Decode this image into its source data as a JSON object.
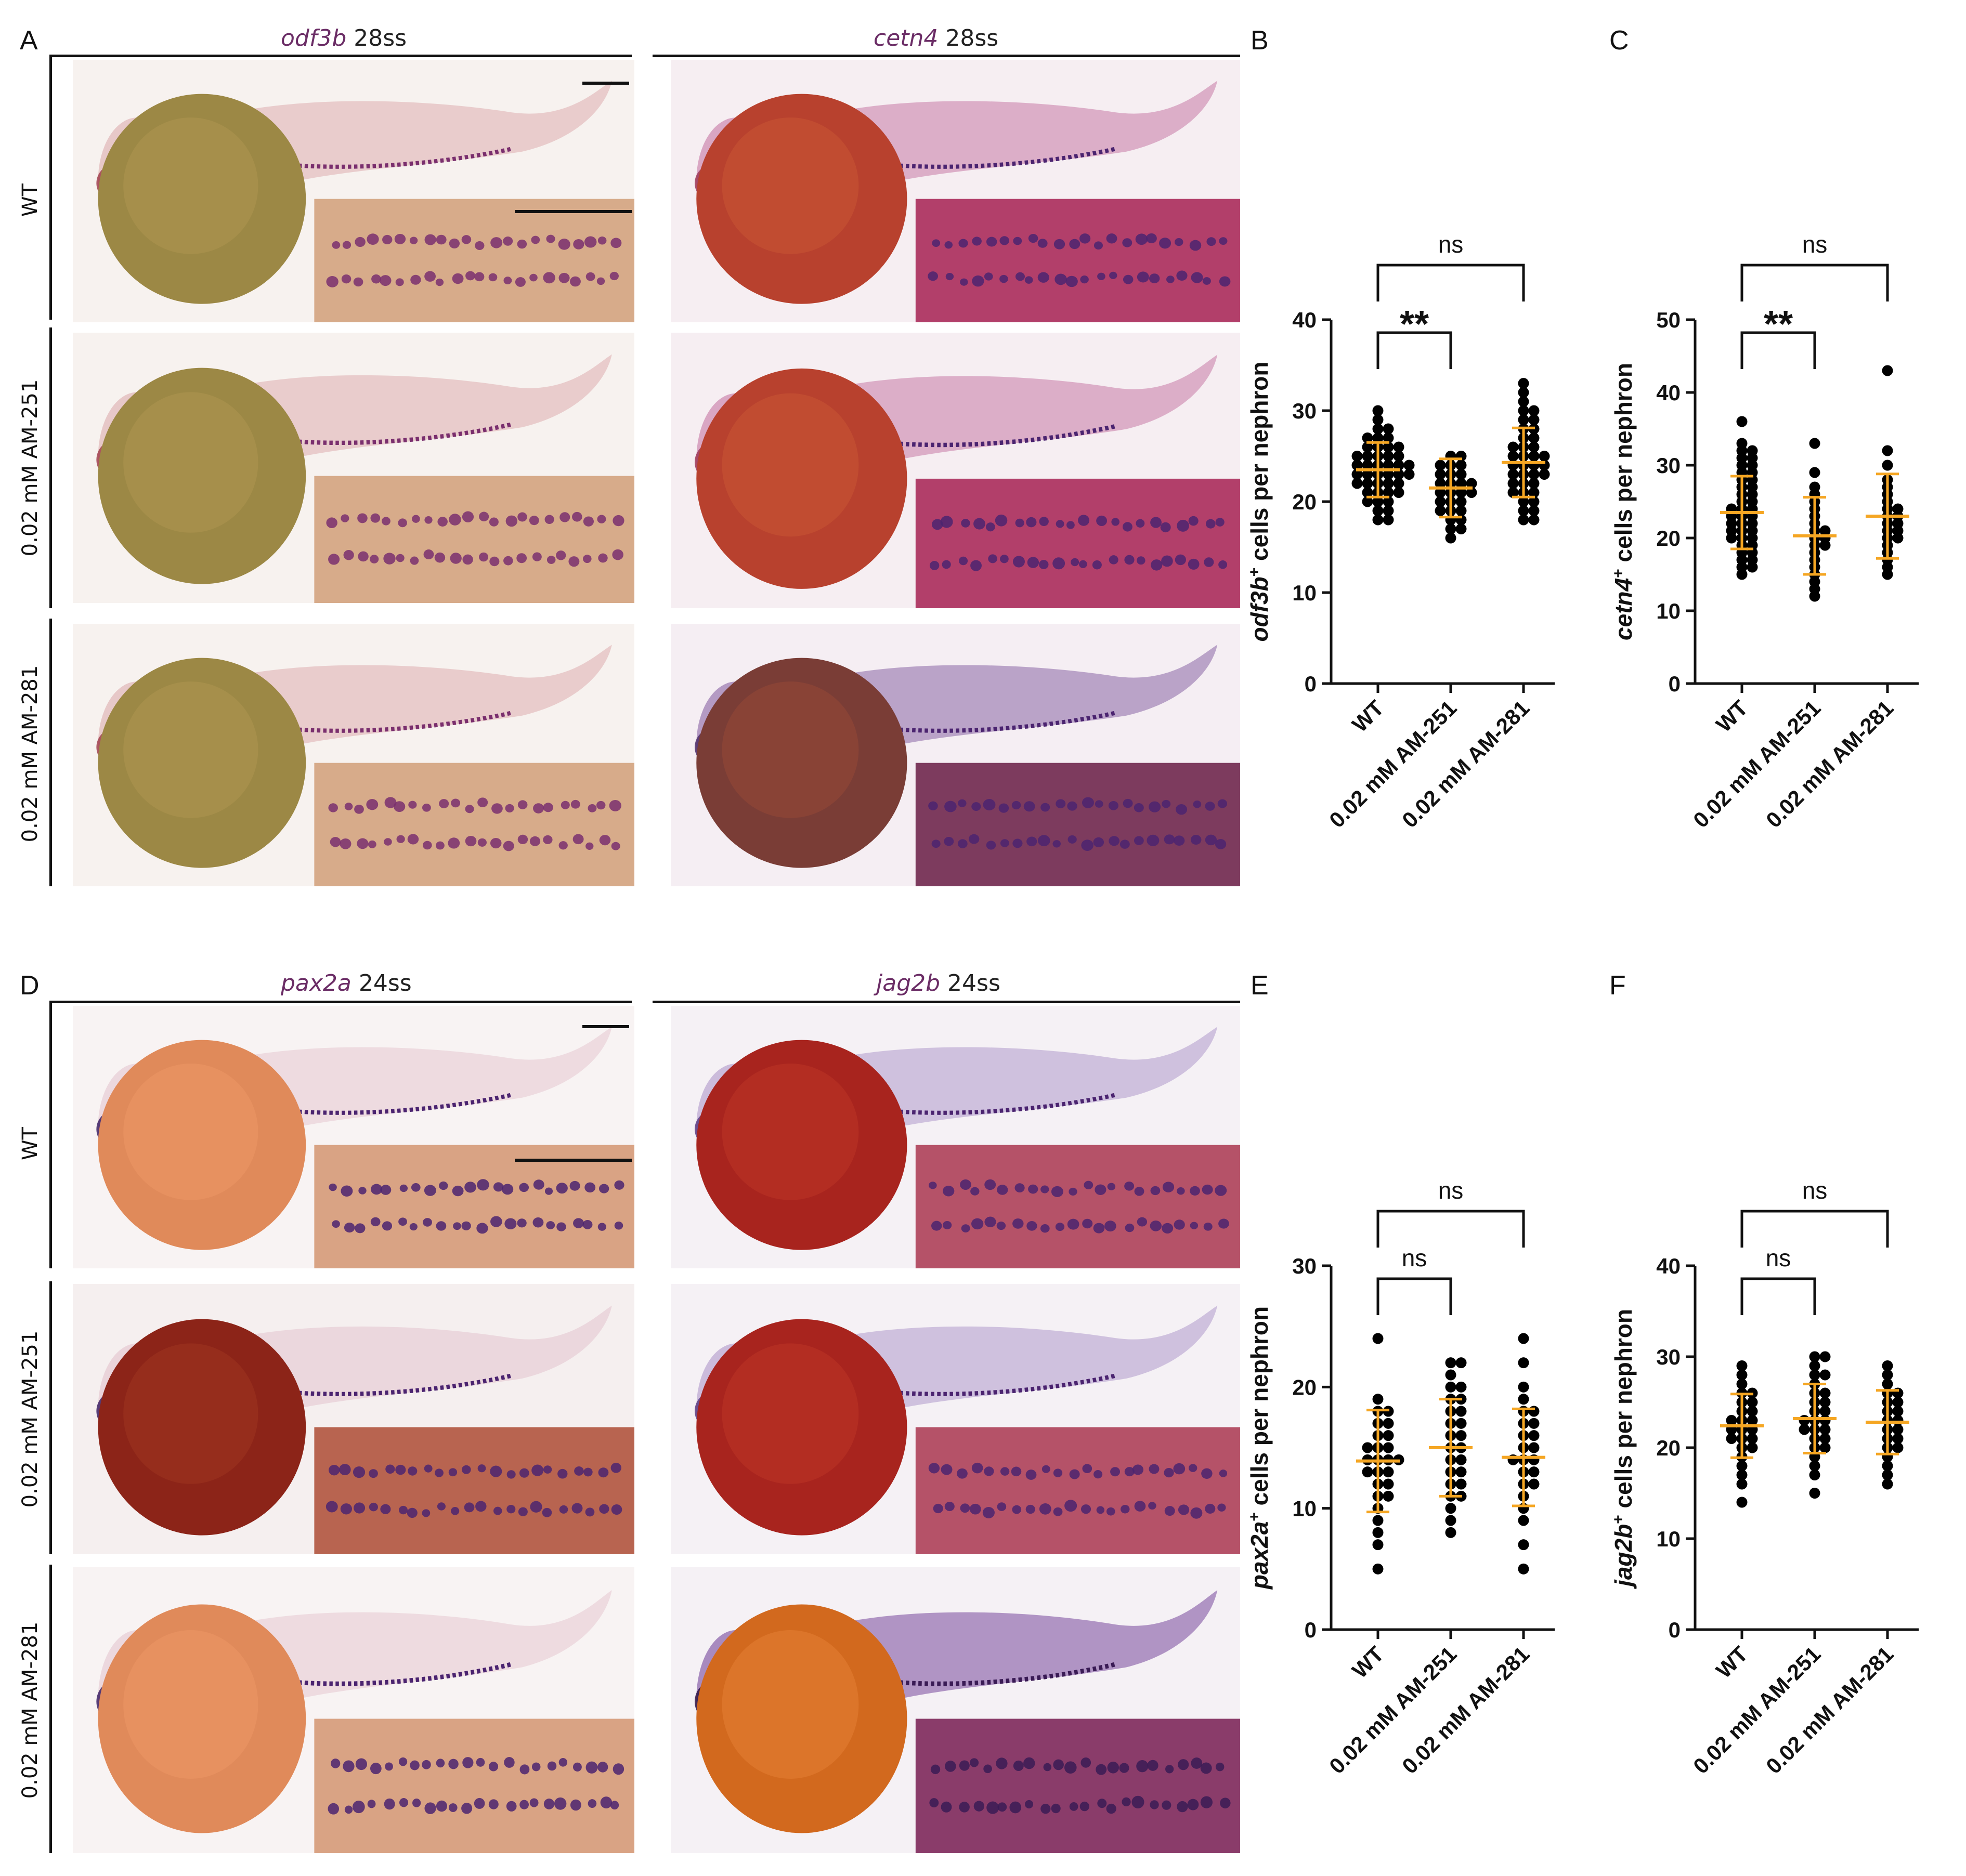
{
  "panel_labels": {
    "A": "A",
    "B": "B",
    "C": "C",
    "D": "D",
    "E": "E",
    "F": "F"
  },
  "panel_A": {
    "left_title": {
      "gene": "odf3b",
      "stage": " 28ss"
    },
    "right_title": {
      "gene": "cetn4",
      "stage": " 28ss"
    },
    "rows": [
      "WT",
      "0.02 mM AM-251",
      "0.02 mM AM-281"
    ]
  },
  "panel_D": {
    "left_title": {
      "gene": "pax2a",
      "stage": " 24ss"
    },
    "right_title": {
      "gene": "jag2b",
      "stage": " 24ss"
    },
    "rows": [
      "WT",
      "0.02 mM AM-251",
      "0.02 mM AM-281"
    ]
  },
  "colors": {
    "points": "#000000",
    "mean_sd": "#f5a623",
    "yolk_odf3b": "#9c8845",
    "yolk_cetn4": "#b8412e",
    "yolk_pax2a": "#e08a5a",
    "yolk_jag2b": "#a8241e",
    "stain": "#4b2470"
  },
  "chart_data": [
    {
      "panel": "B",
      "type": "scatter",
      "ylabel_gene": "odf3b",
      "ylabel_sup": "+",
      "ylabel_rest": " cells per nephron",
      "categories": [
        "WT",
        "0.02 mM AM-251",
        "0.02 mM AM-281"
      ],
      "ylim": [
        0,
        40
      ],
      "yticks": [
        0,
        10,
        20,
        30,
        40
      ],
      "mean": [
        23.5,
        21.5,
        24.3
      ],
      "sd": [
        3.0,
        3.2,
        3.8
      ],
      "points": [
        [
          18,
          18,
          19,
          19,
          20,
          20,
          20,
          21,
          21,
          21,
          21,
          22,
          22,
          22,
          22,
          22,
          23,
          23,
          23,
          23,
          23,
          23,
          24,
          24,
          24,
          24,
          24,
          24,
          25,
          25,
          25,
          25,
          25,
          26,
          26,
          26,
          26,
          27,
          27,
          27,
          28,
          28,
          29,
          30
        ],
        [
          16,
          17,
          17,
          18,
          18,
          19,
          19,
          19,
          20,
          20,
          20,
          21,
          21,
          21,
          21,
          22,
          22,
          22,
          22,
          23,
          23,
          23,
          24,
          24,
          24,
          25,
          25
        ],
        [
          18,
          18,
          19,
          19,
          20,
          20,
          21,
          21,
          21,
          22,
          22,
          22,
          23,
          23,
          23,
          23,
          24,
          24,
          24,
          24,
          25,
          25,
          25,
          25,
          26,
          26,
          26,
          27,
          27,
          28,
          28,
          29,
          29,
          30,
          30,
          31,
          32,
          33
        ]
      ],
      "comparisons": [
        {
          "from": 0,
          "to": 1,
          "label": "**",
          "level": 1
        },
        {
          "from": 0,
          "to": 2,
          "label": "ns",
          "level": 2
        }
      ]
    },
    {
      "panel": "C",
      "type": "scatter",
      "ylabel_gene": "cetn4",
      "ylabel_sup": "+",
      "ylabel_rest": " cells per nephron",
      "categories": [
        "WT",
        "0.02 mM AM-251",
        "0.02 mM AM-281"
      ],
      "ylim": [
        0,
        50
      ],
      "yticks": [
        0,
        10,
        20,
        30,
        40,
        50
      ],
      "mean": [
        23.5,
        20.3,
        23.0
      ],
      "sd": [
        5.0,
        5.3,
        5.8
      ],
      "points": [
        [
          15,
          16,
          16,
          17,
          17,
          18,
          18,
          19,
          19,
          20,
          20,
          20,
          21,
          21,
          21,
          22,
          22,
          22,
          23,
          23,
          23,
          24,
          24,
          24,
          25,
          25,
          26,
          26,
          27,
          27,
          28,
          28,
          29,
          29,
          30,
          30,
          31,
          31,
          32,
          32,
          33,
          36
        ],
        [
          12,
          13,
          14,
          15,
          16,
          17,
          18,
          19,
          19,
          20,
          20,
          21,
          21,
          22,
          23,
          24,
          25,
          26,
          27,
          29,
          33
        ],
        [
          15,
          16,
          17,
          18,
          19,
          20,
          20,
          21,
          21,
          22,
          22,
          23,
          23,
          24,
          24,
          25,
          26,
          27,
          28,
          30,
          32,
          43
        ]
      ],
      "comparisons": [
        {
          "from": 0,
          "to": 1,
          "label": "**",
          "level": 1
        },
        {
          "from": 0,
          "to": 2,
          "label": "ns",
          "level": 2
        }
      ]
    },
    {
      "panel": "E",
      "type": "scatter",
      "ylabel_gene": "pax2a",
      "ylabel_sup": "+",
      "ylabel_rest": " cells per nephron",
      "categories": [
        "WT",
        "0.02 mM AM-251",
        "0.02 mM AM-281"
      ],
      "ylim": [
        0,
        30
      ],
      "yticks": [
        0,
        10,
        20,
        30
      ],
      "mean": [
        13.9,
        15.0,
        14.2
      ],
      "sd": [
        4.2,
        4.0,
        4.0
      ],
      "points": [
        [
          5,
          7,
          8,
          9,
          10,
          11,
          11,
          12,
          12,
          13,
          13,
          13,
          14,
          14,
          14,
          14,
          15,
          15,
          15,
          16,
          16,
          17,
          17,
          18,
          18,
          19,
          24
        ],
        [
          8,
          9,
          10,
          11,
          11,
          12,
          12,
          13,
          13,
          14,
          14,
          15,
          15,
          16,
          16,
          17,
          17,
          18,
          18,
          19,
          19,
          20,
          20,
          21,
          22,
          22
        ],
        [
          5,
          7,
          9,
          10,
          11,
          12,
          12,
          13,
          13,
          14,
          14,
          14,
          15,
          15,
          16,
          16,
          17,
          17,
          18,
          18,
          19,
          20,
          22,
          24
        ]
      ],
      "comparisons": [
        {
          "from": 0,
          "to": 1,
          "label": "ns",
          "level": 1
        },
        {
          "from": 0,
          "to": 2,
          "label": "ns",
          "level": 2
        }
      ]
    },
    {
      "panel": "F",
      "type": "scatter",
      "ylabel_gene": "jag2b",
      "ylabel_sup": "+",
      "ylabel_rest": " cells per nephron",
      "categories": [
        "WT",
        "0.02 mM AM-251",
        "0.02 mM AM-281"
      ],
      "ylim": [
        0,
        40
      ],
      "yticks": [
        0,
        10,
        20,
        30,
        40
      ],
      "mean": [
        22.4,
        23.2,
        22.8
      ],
      "sd": [
        3.5,
        3.8,
        3.5
      ],
      "points": [
        [
          14,
          16,
          17,
          18,
          19,
          20,
          20,
          21,
          21,
          21,
          22,
          22,
          22,
          23,
          23,
          23,
          24,
          24,
          25,
          25,
          26,
          26,
          27,
          28,
          29
        ],
        [
          15,
          17,
          18,
          19,
          20,
          20,
          21,
          21,
          22,
          22,
          22,
          23,
          23,
          23,
          24,
          24,
          25,
          25,
          26,
          26,
          27,
          28,
          28,
          29,
          30,
          30
        ],
        [
          16,
          17,
          18,
          19,
          20,
          20,
          21,
          21,
          22,
          22,
          23,
          23,
          24,
          24,
          25,
          25,
          26,
          26,
          27,
          28,
          29
        ]
      ],
      "comparisons": [
        {
          "from": 0,
          "to": 1,
          "label": "ns",
          "level": 1
        },
        {
          "from": 0,
          "to": 2,
          "label": "ns",
          "level": 2
        }
      ]
    }
  ]
}
